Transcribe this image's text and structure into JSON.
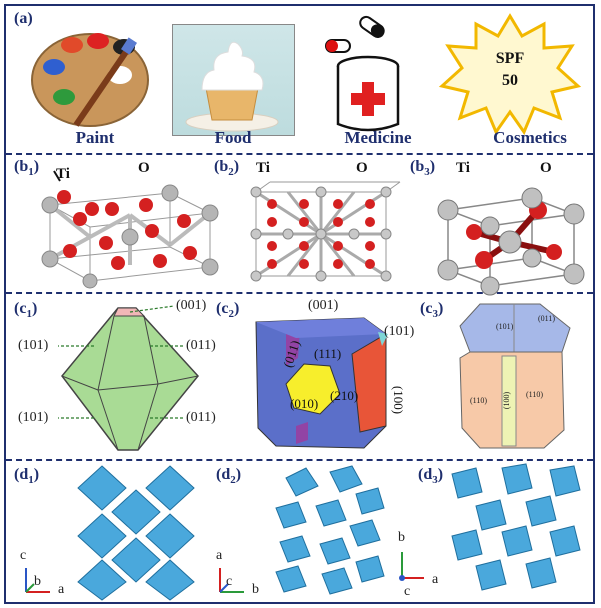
{
  "panels": {
    "a": {
      "label": "(a)",
      "captions": [
        "Paint",
        "Food",
        "Medicine",
        "Cosmetics"
      ],
      "spf_text": "SPF",
      "spf_value": "50"
    },
    "b1": {
      "label": "(b",
      "sub": "1",
      "ti": "Ti",
      "o": "O"
    },
    "b2": {
      "label": "(b",
      "sub": "2",
      "ti": "Ti",
      "o": "O"
    },
    "b3": {
      "label": "(b",
      "sub": "3",
      "ti": "Ti",
      "o": "O"
    },
    "c1": {
      "label": "(c",
      "sub": "1",
      "facets": [
        "(001)",
        "(101)",
        "(011)",
        "(101)",
        "(011)"
      ]
    },
    "c2": {
      "label": "(c",
      "sub": "2",
      "facets": [
        "(001)",
        "(101)",
        "(111)",
        "(011)",
        "(010)",
        "(210)",
        "(100)"
      ]
    },
    "c3": {
      "label": "(c",
      "sub": "3",
      "facets": [
        "(101)",
        "(011)",
        "(110)",
        "(100)",
        "(110)"
      ]
    },
    "d1": {
      "label": "(d",
      "sub": "1",
      "axes": [
        "c",
        "b",
        "a"
      ]
    },
    "d2": {
      "label": "(d",
      "sub": "2",
      "axes": [
        "a",
        "c",
        "b"
      ]
    },
    "d3": {
      "label": "(d",
      "sub": "3",
      "axes": [
        "b",
        "c",
        "a"
      ]
    }
  },
  "colors": {
    "frame": "#1f2f6e",
    "oxygen": "#d42020",
    "titanium": "#b0b0b0",
    "octahedron": "#3fa3d6",
    "anatase": "#9ad38a"
  }
}
